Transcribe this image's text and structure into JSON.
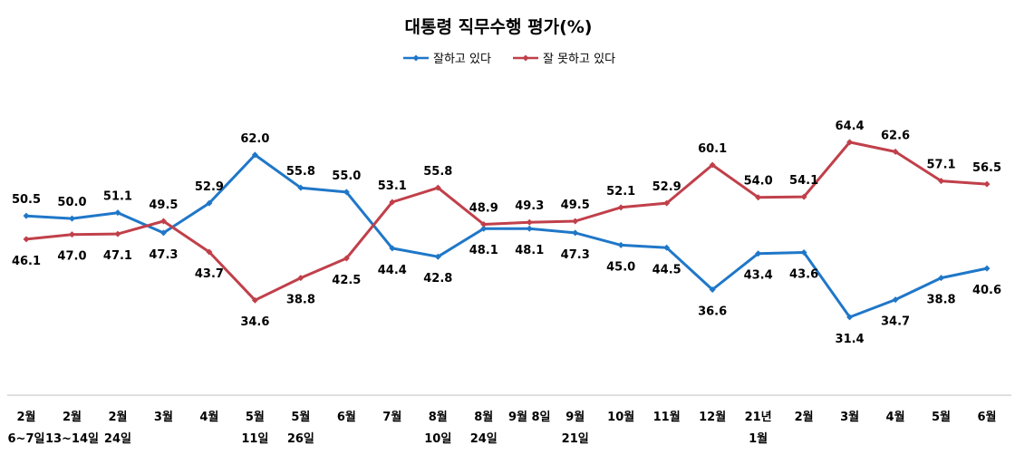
{
  "chart_data": {
    "type": "line",
    "title": "대통령 직무수행 평가(%)",
    "categories": [
      [
        "2월",
        "6~7일"
      ],
      [
        "2월",
        "13~14일"
      ],
      [
        "2월",
        "24일"
      ],
      [
        "3월"
      ],
      [
        "4월"
      ],
      [
        "5월",
        "11일"
      ],
      [
        "5월",
        "26일"
      ],
      [
        "6월"
      ],
      [
        "7월"
      ],
      [
        "8월",
        "10일"
      ],
      [
        "8월",
        "24일"
      ],
      [
        "9월 8일"
      ],
      [
        "9월",
        "21일"
      ],
      [
        "10월"
      ],
      [
        "11월"
      ],
      [
        "12월"
      ],
      [
        "21년",
        "1월"
      ],
      [
        "2월"
      ],
      [
        "3월"
      ],
      [
        "4월"
      ],
      [
        "5월"
      ],
      [
        "6월"
      ]
    ],
    "series": [
      {
        "name": "잘하고 있다",
        "color": "#1f77c8",
        "values": [
          50.5,
          50.0,
          51.1,
          47.3,
          52.9,
          62.0,
          55.8,
          55.0,
          44.4,
          42.8,
          48.1,
          48.1,
          47.3,
          45.0,
          44.5,
          36.6,
          43.4,
          43.6,
          31.4,
          34.7,
          38.8,
          40.6
        ]
      },
      {
        "name": "잘 못하고 있다",
        "color": "#c0404a",
        "values": [
          46.1,
          47.0,
          47.1,
          49.5,
          43.7,
          34.6,
          38.8,
          42.5,
          53.1,
          55.8,
          48.9,
          49.3,
          49.5,
          52.1,
          52.9,
          60.1,
          54.0,
          54.1,
          64.4,
          62.6,
          57.1,
          56.5
        ]
      }
    ],
    "legend": "top-center",
    "grid": false
  }
}
